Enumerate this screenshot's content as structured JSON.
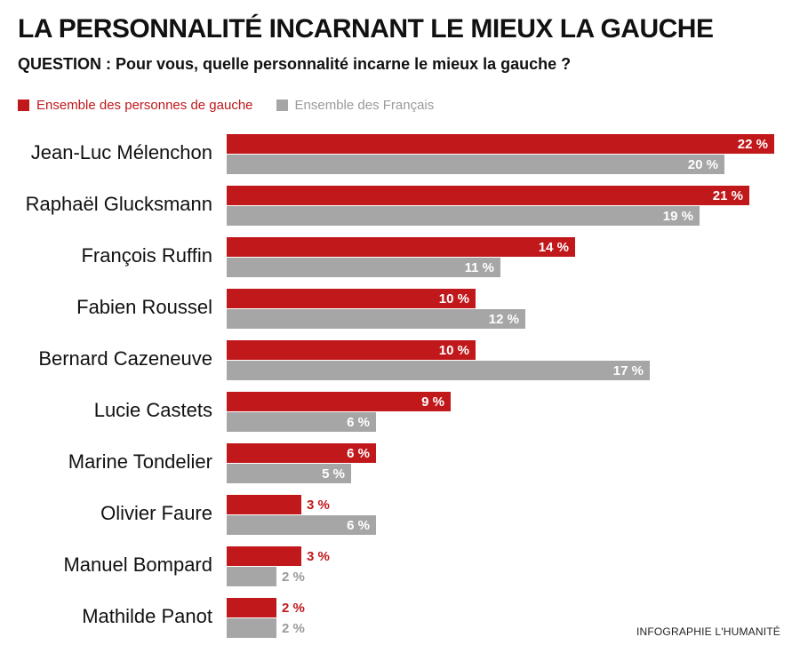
{
  "title": "LA PERSONNALITÉ INCARNANT LE MIEUX LA GAUCHE",
  "question": "QUESTION : Pour vous, quelle personnalité incarne le mieux la gauche ?",
  "credit": "INFOGRAPHIE L'HUMANITÉ",
  "colors": {
    "red": "#c0181b",
    "gray": "#a6a6a6",
    "gray_text": "#9a9a9a"
  },
  "chart_data": {
    "type": "bar",
    "orientation": "horizontal",
    "unit": "%",
    "categories": [
      "Jean-Luc Mélenchon",
      "Raphaël Glucksmann",
      "François Ruffin",
      "Fabien Roussel",
      "Bernard Cazeneuve",
      "Lucie Castets",
      "Marine Tondelier",
      "Olivier Faure",
      "Manuel Bompard",
      "Mathilde Panot"
    ],
    "series": [
      {
        "name": "Ensemble des personnes de gauche",
        "color": "#c0181b",
        "values": [
          22,
          21,
          14,
          10,
          10,
          9,
          6,
          3,
          3,
          2
        ]
      },
      {
        "name": "Ensemble des Français",
        "color": "#a6a6a6",
        "values": [
          20,
          19,
          11,
          12,
          17,
          6,
          5,
          6,
          2,
          2
        ]
      }
    ],
    "value_labels": [
      [
        "22 %",
        "21 %",
        "14 %",
        "10 %",
        "10 %",
        "9 %",
        "6 %",
        "3 %",
        "3 %",
        "2 %"
      ],
      [
        "20 %",
        "19 %",
        "11 %",
        "12 %",
        "17 %",
        "6 %",
        "5 %",
        "6 %",
        "2 %",
        "2 %"
      ]
    ],
    "legend_position": "top-left",
    "grid": false
  }
}
